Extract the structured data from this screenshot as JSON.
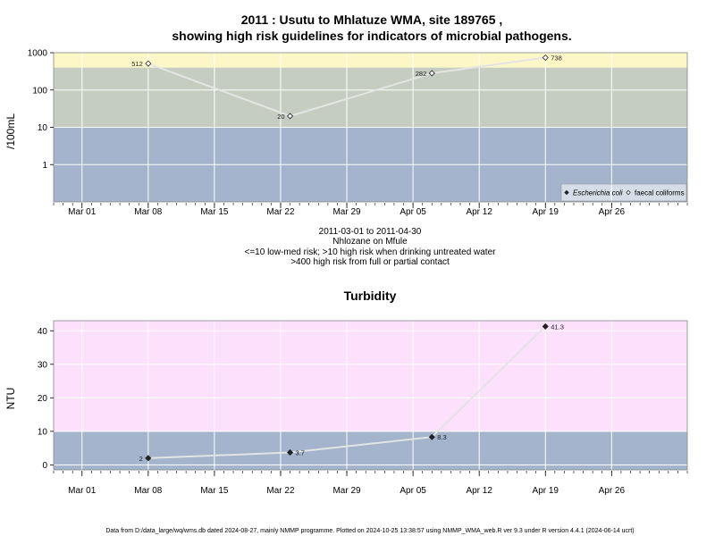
{
  "footer": "Data from D:/data_large/wq/wms.db dated 2024-08-27, mainly NMMP programme. Plotted on 2024-10-25 13:38:57 using NMMP_WMA_web.R ver 9.3 under R version 4.4.1 (2024-06-14 ucrt)",
  "chart_data": [
    {
      "type": "scatter",
      "title_line1": "2011 : Usutu to Mhlatuze WMA, site 189765 ,",
      "title_line2": "showing high risk guidelines for indicators of microbial pathogens.",
      "ylabel": "/100mL",
      "yscale": "log",
      "ylim": [
        0.1,
        1000
      ],
      "y_ticks": [
        1,
        10,
        100,
        1000
      ],
      "y_tick_labels": [
        "1",
        "10",
        "100",
        "1000"
      ],
      "x_ticks": [
        "2011-03-01",
        "2011-03-08",
        "2011-03-15",
        "2011-03-22",
        "2011-03-29",
        "2011-04-05",
        "2011-04-12",
        "2011-04-19",
        "2011-04-26"
      ],
      "x_tick_labels": [
        "Mar 01",
        "Mar 08",
        "Mar 15",
        "Mar 22",
        "Mar 29",
        "Apr 05",
        "Apr 12",
        "Apr 19",
        "Apr 26"
      ],
      "xlim": [
        "2011-02-26",
        "2011-05-04"
      ],
      "bands": [
        {
          "from": 0.1,
          "to": 10,
          "color": "#a3b4cc"
        },
        {
          "from": 10,
          "to": 400,
          "color": "#c5cdc0"
        },
        {
          "from": 400,
          "to": 1000,
          "color": "#fdf7c7"
        }
      ],
      "grid": true,
      "legend_position": "bottom-right",
      "series": [
        {
          "name": "Escherichia coli",
          "marker": "filled-diamond",
          "x": [],
          "y": []
        },
        {
          "name": "faecal coliforms",
          "marker": "open-diamond",
          "x": [
            "2011-03-08",
            "2011-03-23",
            "2011-04-07",
            "2011-04-19"
          ],
          "y": [
            512,
            20,
            282,
            738
          ],
          "labels": [
            "512",
            "20",
            "282",
            "738"
          ]
        }
      ],
      "subtitle_lines": [
        "2011-03-01 to 2011-04-30",
        "Nhlozane on Mfule",
        "<=10 low-med risk; >10 high risk when drinking untreated water",
        ">400 high risk from full or partial contact"
      ]
    },
    {
      "type": "line",
      "title": "Turbidity",
      "ylabel": "NTU",
      "ylim": [
        -1.5,
        43
      ],
      "y_ticks": [
        0,
        10,
        20,
        30,
        40
      ],
      "y_tick_labels": [
        "0",
        "10",
        "20",
        "30",
        "40"
      ],
      "x_ticks": [
        "2011-03-01",
        "2011-03-08",
        "2011-03-15",
        "2011-03-22",
        "2011-03-29",
        "2011-04-05",
        "2011-04-12",
        "2011-04-19",
        "2011-04-26"
      ],
      "x_tick_labels": [
        "Mar 01",
        "Mar 08",
        "Mar 15",
        "Mar 22",
        "Mar 29",
        "Apr 05",
        "Apr 12",
        "Apr 19",
        "Apr 26"
      ],
      "xlim": [
        "2011-02-26",
        "2011-05-04"
      ],
      "bands": [
        {
          "from": -1.5,
          "to": 10,
          "color": "#a3b4cc"
        },
        {
          "from": 10,
          "to": 43,
          "color": "#fce0fc"
        }
      ],
      "grid": true,
      "series": [
        {
          "name": "",
          "marker": "filled-diamond",
          "x": [
            "2011-03-08",
            "2011-03-23",
            "2011-04-07",
            "2011-04-19"
          ],
          "y": [
            2,
            3.7,
            8.3,
            41.3
          ],
          "labels": [
            "2",
            "3.7",
            "8.3",
            "41.3"
          ]
        }
      ]
    }
  ]
}
